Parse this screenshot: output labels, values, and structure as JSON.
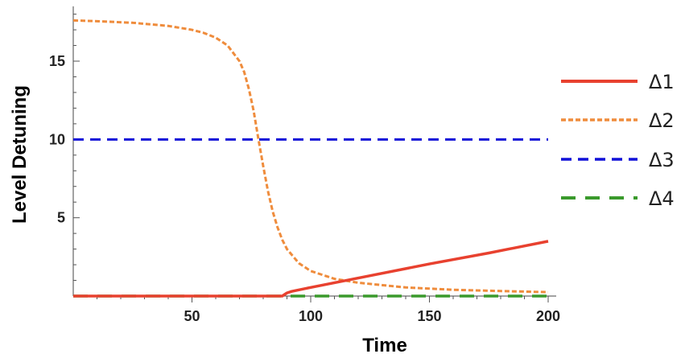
{
  "chart_data": {
    "type": "line",
    "title": "",
    "xlabel": "Time",
    "ylabel": "Level Detuning",
    "xlim": [
      0,
      200
    ],
    "ylim": [
      0,
      18.5
    ],
    "x_ticks": [
      50,
      100,
      150,
      200
    ],
    "y_ticks": [
      5,
      10,
      15
    ],
    "grid": false,
    "legend_position": "right",
    "series": [
      {
        "name": "Δ1",
        "color": "#e8412f",
        "style": "solid",
        "x": [
          0,
          50,
          88,
          90,
          92,
          100,
          125,
          150,
          175,
          200
        ],
        "y": [
          0,
          0,
          0,
          0.2,
          0.3,
          0.55,
          1.3,
          2.05,
          2.75,
          3.5
        ]
      },
      {
        "name": "Δ2",
        "color": "#ef8c3c",
        "style": "dotted",
        "x": [
          0,
          10,
          25,
          40,
          50,
          55,
          60,
          65,
          70,
          72,
          74,
          76,
          78,
          80,
          82,
          84,
          86,
          88,
          90,
          95,
          100,
          110,
          120,
          140,
          160,
          180,
          200
        ],
        "y": [
          17.6,
          17.55,
          17.45,
          17.25,
          17.0,
          16.8,
          16.5,
          16.0,
          15.0,
          14.3,
          13.2,
          11.8,
          10.0,
          8.3,
          6.7,
          5.4,
          4.4,
          3.6,
          3.0,
          2.1,
          1.6,
          1.1,
          0.85,
          0.55,
          0.4,
          0.32,
          0.25
        ]
      },
      {
        "name": "Δ3",
        "color": "#1010d8",
        "style": "dashed",
        "x": [
          0,
          200
        ],
        "y": [
          10,
          10
        ]
      },
      {
        "name": "Δ4",
        "color": "#3a9a2c",
        "style": "long-dashed",
        "x": [
          0,
          200
        ],
        "y": [
          0,
          0
        ]
      }
    ]
  }
}
